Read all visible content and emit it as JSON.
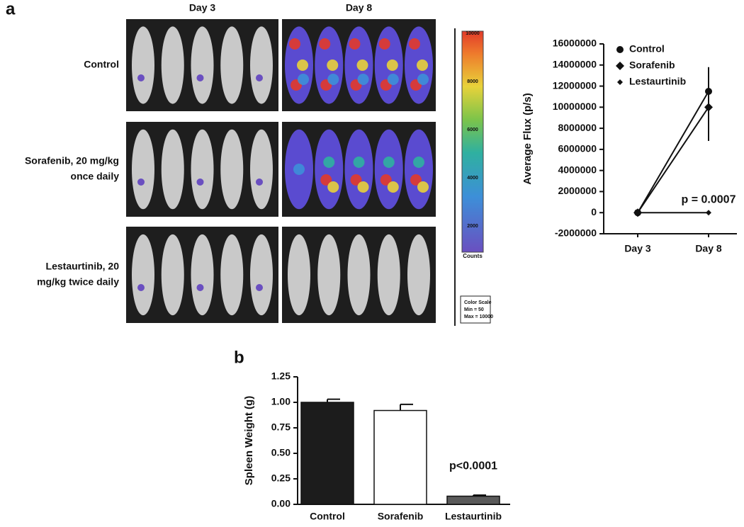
{
  "panels": {
    "a": "a",
    "b": "b"
  },
  "imaging": {
    "columns": [
      "Day 3",
      "Day 8"
    ],
    "rows": [
      [
        "Control"
      ],
      [
        "Sorafenib, 20 mg/kg",
        "once daily"
      ],
      [
        "Lestaurtinib, 20",
        "mg/kg twice daily"
      ]
    ],
    "colorbar": {
      "ticks": [
        "10000",
        "8000",
        "6000",
        "4000",
        "2000"
      ],
      "unit": "Counts",
      "box": [
        "Color Scale",
        "Min = 50",
        "Max = 10000"
      ]
    }
  },
  "chart_data": [
    {
      "type": "line",
      "y_label": "Average Flux (p/s)",
      "categories": [
        "Day 3",
        "Day 8"
      ],
      "series": [
        {
          "name": "Control",
          "color": "#111111",
          "marker": "circle",
          "values": [
            0,
            11500000
          ],
          "errors": [
            0,
            2300000
          ]
        },
        {
          "name": "Sorafenib",
          "color": "#111111",
          "marker": "diamond",
          "values": [
            0,
            10000000
          ],
          "errors": [
            0,
            3200000
          ]
        },
        {
          "name": "Lestaurtinib",
          "color": "#111111",
          "marker": "small-diamond",
          "values": [
            0,
            0
          ],
          "errors": [
            0,
            0
          ]
        }
      ],
      "ylim": [
        -2000000,
        16000000
      ],
      "yticks": [
        -2000000,
        0,
        2000000,
        4000000,
        6000000,
        8000000,
        10000000,
        12000000,
        14000000,
        16000000
      ],
      "annotation": "p = 0.0007",
      "legend": "upper-left"
    },
    {
      "type": "bar",
      "y_label": "Spleen Weight (g)",
      "categories": [
        "Control",
        "Sorafenib",
        "Lestaurtinib"
      ],
      "values": [
        1.0,
        0.92,
        0.08
      ],
      "errors": [
        0.03,
        0.06,
        0.01
      ],
      "colors": [
        "#1c1c1c",
        "#ffffff",
        "#5a5a5a"
      ],
      "ylim": [
        0,
        1.25
      ],
      "yticks": [
        {
          "value": 0,
          "label": "0.00"
        },
        {
          "value": 0.25,
          "label": "0.25"
        },
        {
          "value": 0.5,
          "label": "0.50"
        },
        {
          "value": 0.75,
          "label": "0.75"
        },
        {
          "value": 1.0,
          "label": "1.00"
        },
        {
          "value": 1.25,
          "label": "1.25"
        }
      ],
      "annotation": "p<0.0001"
    }
  ]
}
